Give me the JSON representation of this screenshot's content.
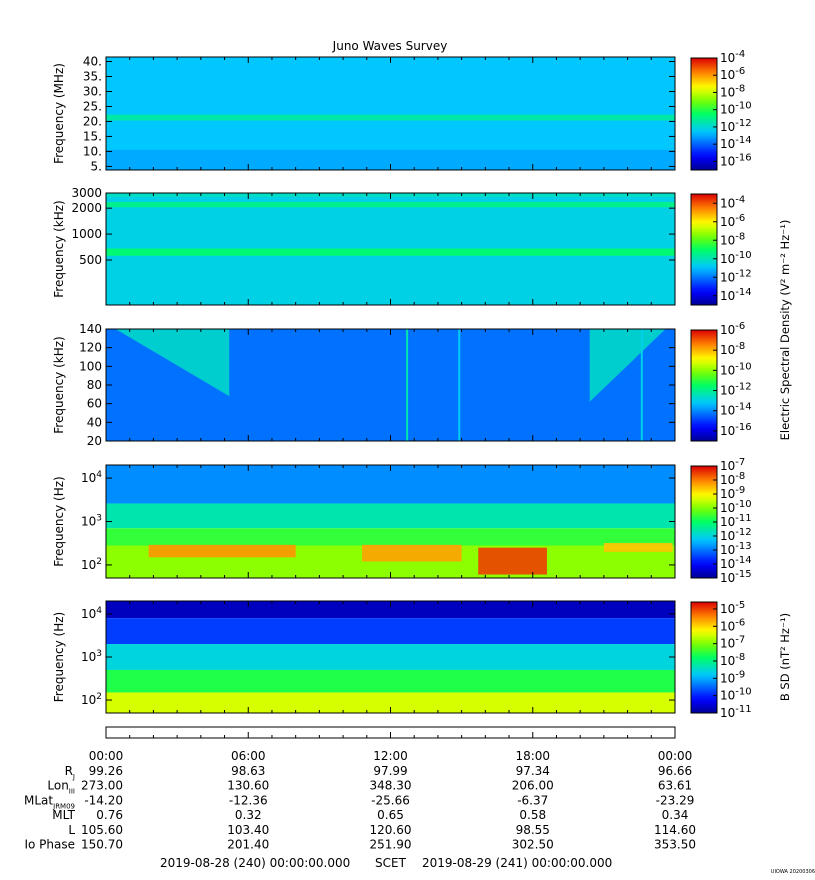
{
  "title": "Juno Waves Survey",
  "footer": {
    "start_time": "2019-08-28 (240) 00:00:00.000",
    "time_label": "SCET",
    "end_time": "2019-08-29 (241) 00:00:00.000",
    "stamp": "UIOWA 20200306"
  },
  "chart_data": [
    {
      "type": "heatmap",
      "name": "",
      "ylabel": "Frequency (MHz)",
      "yscale": "linear",
      "ylim": [
        3.8,
        41.5
      ],
      "yticks": [
        {
          "v": 5,
          "label": "5."
        },
        {
          "v": 10,
          "label": "10."
        },
        {
          "v": 15,
          "label": "15."
        },
        {
          "v": 20,
          "label": "20."
        },
        {
          "v": 25,
          "label": "25."
        },
        {
          "v": 30,
          "label": "30."
        },
        {
          "v": 35,
          "label": "35."
        },
        {
          "v": 40,
          "label": "40."
        }
      ],
      "xlim_hours": [
        0,
        24
      ],
      "intensity_log10_range": [
        -17,
        -4
      ],
      "features": [
        {
          "kind": "background",
          "log10_level": -12.6
        },
        {
          "kind": "band",
          "y_from": 20.3,
          "y_to": 22.3,
          "log10_level": -11.4
        },
        {
          "kind": "band",
          "y_from": 3.8,
          "y_to": 10.5,
          "log10_level": -13.0
        }
      ],
      "colorbar": {
        "label": "",
        "exponents": [
          -4,
          -6,
          -8,
          -10,
          -12,
          -14,
          -16
        ],
        "exp_range": [
          -17,
          -4
        ]
      }
    },
    {
      "type": "heatmap",
      "name": "",
      "ylabel": "Frequency (kHz)",
      "yscale": "log",
      "ylim": [
        150,
        3000
      ],
      "yticks": [
        {
          "v": 500,
          "label": "500"
        },
        {
          "v": 1000,
          "label": "1000"
        },
        {
          "v": 2000,
          "label": "2000"
        },
        {
          "v": 3000,
          "label": "3000"
        }
      ],
      "xlim_hours": [
        0,
        24
      ],
      "intensity_log10_range": [
        -15,
        -3
      ],
      "features": [
        {
          "kind": "background",
          "log10_level": -10.6
        },
        {
          "kind": "band",
          "y_from": 560,
          "y_to": 680,
          "log10_level": -9.2
        },
        {
          "kind": "band",
          "y_from": 2050,
          "y_to": 2350,
          "log10_level": -9.5
        },
        {
          "kind": "band",
          "y_from": 2700,
          "y_to": 3000,
          "log10_level": -10.2
        }
      ],
      "colorbar": {
        "label": "Electric Spectral Density (V² m⁻² Hz⁻¹)",
        "exponents": [
          -4,
          -6,
          -8,
          -10,
          -12,
          -14
        ],
        "exp_range": [
          -15,
          -3
        ]
      }
    },
    {
      "type": "heatmap",
      "name": "",
      "ylabel": "Frequency (kHz)",
      "yscale": "linear",
      "ylim": [
        20,
        140
      ],
      "yticks": [
        {
          "v": 20,
          "label": "20"
        },
        {
          "v": 40,
          "label": "40"
        },
        {
          "v": 60,
          "label": "60"
        },
        {
          "v": 80,
          "label": "80"
        },
        {
          "v": 100,
          "label": "100"
        },
        {
          "v": 120,
          "label": "120"
        },
        {
          "v": 140,
          "label": "140"
        }
      ],
      "xlim_hours": [
        0,
        24
      ],
      "intensity_log10_range": [
        -17,
        -6
      ],
      "features": [
        {
          "kind": "background",
          "log10_level": -14.3
        },
        {
          "kind": "emission",
          "t_from": 0.4,
          "t_to": 5.2,
          "y_low_start": 140,
          "y_low_end": 68,
          "log10_level": -12.6
        },
        {
          "kind": "emission",
          "t_from": 20.4,
          "t_to": 23.6,
          "y_low_start": 62,
          "y_low_end": 140,
          "log10_level": -12.6
        },
        {
          "kind": "spike",
          "t": 12.7,
          "log10_level": -12.4
        },
        {
          "kind": "spike",
          "t": 14.9,
          "log10_level": -13.2
        },
        {
          "kind": "spike",
          "t": 22.6,
          "log10_level": -13.0
        }
      ],
      "colorbar": {
        "label": "",
        "exponents": [
          -6,
          -8,
          -10,
          -12,
          -14,
          -16
        ],
        "exp_range": [
          -17,
          -6
        ]
      }
    },
    {
      "type": "heatmap",
      "name": "",
      "ylabel": "Frequency (Hz)",
      "yscale": "log",
      "ylim": [
        50,
        20000
      ],
      "yticks": [
        {
          "v": 100,
          "label": "10",
          "sup": "2"
        },
        {
          "v": 1000,
          "label": "10",
          "sup": "3"
        },
        {
          "v": 10000,
          "label": "10",
          "sup": "4"
        }
      ],
      "xlim_hours": [
        0,
        24
      ],
      "intensity_log10_range": [
        -15,
        -7
      ],
      "features": [
        {
          "kind": "band",
          "y_from": 2600,
          "y_to": 20000,
          "log10_level": -12.8
        },
        {
          "kind": "band",
          "y_from": 700,
          "y_to": 2600,
          "log10_level": -11.6
        },
        {
          "kind": "band",
          "y_from": 280,
          "y_to": 700,
          "log10_level": -10.6
        },
        {
          "kind": "band",
          "y_from": 50,
          "y_to": 280,
          "log10_level": -9.9
        },
        {
          "kind": "burst",
          "t_from": 1.8,
          "t_to": 8.0,
          "y_from": 150,
          "y_to": 290,
          "log10_level": -8.2
        },
        {
          "kind": "burst",
          "t_from": 10.8,
          "t_to": 15.0,
          "y_from": 120,
          "y_to": 290,
          "log10_level": -8.3
        },
        {
          "kind": "burst",
          "t_from": 15.7,
          "t_to": 18.6,
          "y_from": 60,
          "y_to": 250,
          "log10_level": -7.5
        },
        {
          "kind": "burst",
          "t_from": 21.0,
          "t_to": 23.9,
          "y_from": 200,
          "y_to": 320,
          "log10_level": -8.6
        }
      ],
      "colorbar": {
        "label": "",
        "exponents": [
          -7,
          -8,
          -9,
          -10,
          -11,
          -12,
          -13,
          -14,
          -15
        ],
        "exp_range": [
          -15,
          -7
        ]
      }
    },
    {
      "type": "heatmap",
      "name": "",
      "ylabel": "Frequency (Hz)",
      "yscale": "log",
      "ylim": [
        50,
        20000
      ],
      "yticks": [
        {
          "v": 100,
          "label": "10",
          "sup": "2"
        },
        {
          "v": 1000,
          "label": "10",
          "sup": "3"
        },
        {
          "v": 10000,
          "label": "10",
          "sup": "4"
        }
      ],
      "xlim_hours": [
        0,
        24
      ],
      "intensity_log10_range": [
        -11,
        -4.6
      ],
      "features": [
        {
          "kind": "band",
          "y_from": 8000,
          "y_to": 20000,
          "log10_level": -10.7
        },
        {
          "kind": "band",
          "y_from": 2000,
          "y_to": 8000,
          "log10_level": -9.8
        },
        {
          "kind": "band",
          "y_from": 500,
          "y_to": 2000,
          "log10_level": -8.6
        },
        {
          "kind": "band",
          "y_from": 150,
          "y_to": 500,
          "log10_level": -7.6
        },
        {
          "kind": "band",
          "y_from": 50,
          "y_to": 150,
          "log10_level": -6.5
        }
      ],
      "colorbar": {
        "label": "B SD (nT² Hz⁻¹)",
        "exponents": [
          -5,
          -6,
          -7,
          -8,
          -9,
          -10,
          -11
        ],
        "exp_range": [
          -11,
          -4.6
        ]
      }
    }
  ],
  "x_axis": {
    "times": [
      "00:00",
      "06:00",
      "12:00",
      "18:00",
      "00:00"
    ],
    "hours": [
      0,
      6,
      12,
      18,
      24
    ],
    "ephemeris": [
      {
        "label": "R",
        "sub": "J",
        "values": [
          "99.26",
          "98.63",
          "97.99",
          "97.34",
          "96.66"
        ]
      },
      {
        "label": "Lon",
        "sub": "III",
        "values": [
          "273.00",
          "130.60",
          "348.30",
          "206.00",
          "63.61"
        ]
      },
      {
        "label": "MLat",
        "sub": "JRM09",
        "values": [
          "-14.20",
          "-12.36",
          "-25.66",
          "-6.37",
          "-23.29"
        ]
      },
      {
        "label": "MLT",
        "sub": "",
        "values": [
          "0.76",
          "0.32",
          "0.65",
          "0.58",
          "0.34"
        ]
      },
      {
        "label": "L",
        "sub": "",
        "values": [
          "105.60",
          "103.40",
          "120.60",
          "98.55",
          "114.60"
        ]
      },
      {
        "label": "Io Phase",
        "sub": "",
        "values": [
          "150.70",
          "201.40",
          "251.90",
          "302.50",
          "353.50"
        ]
      }
    ]
  }
}
